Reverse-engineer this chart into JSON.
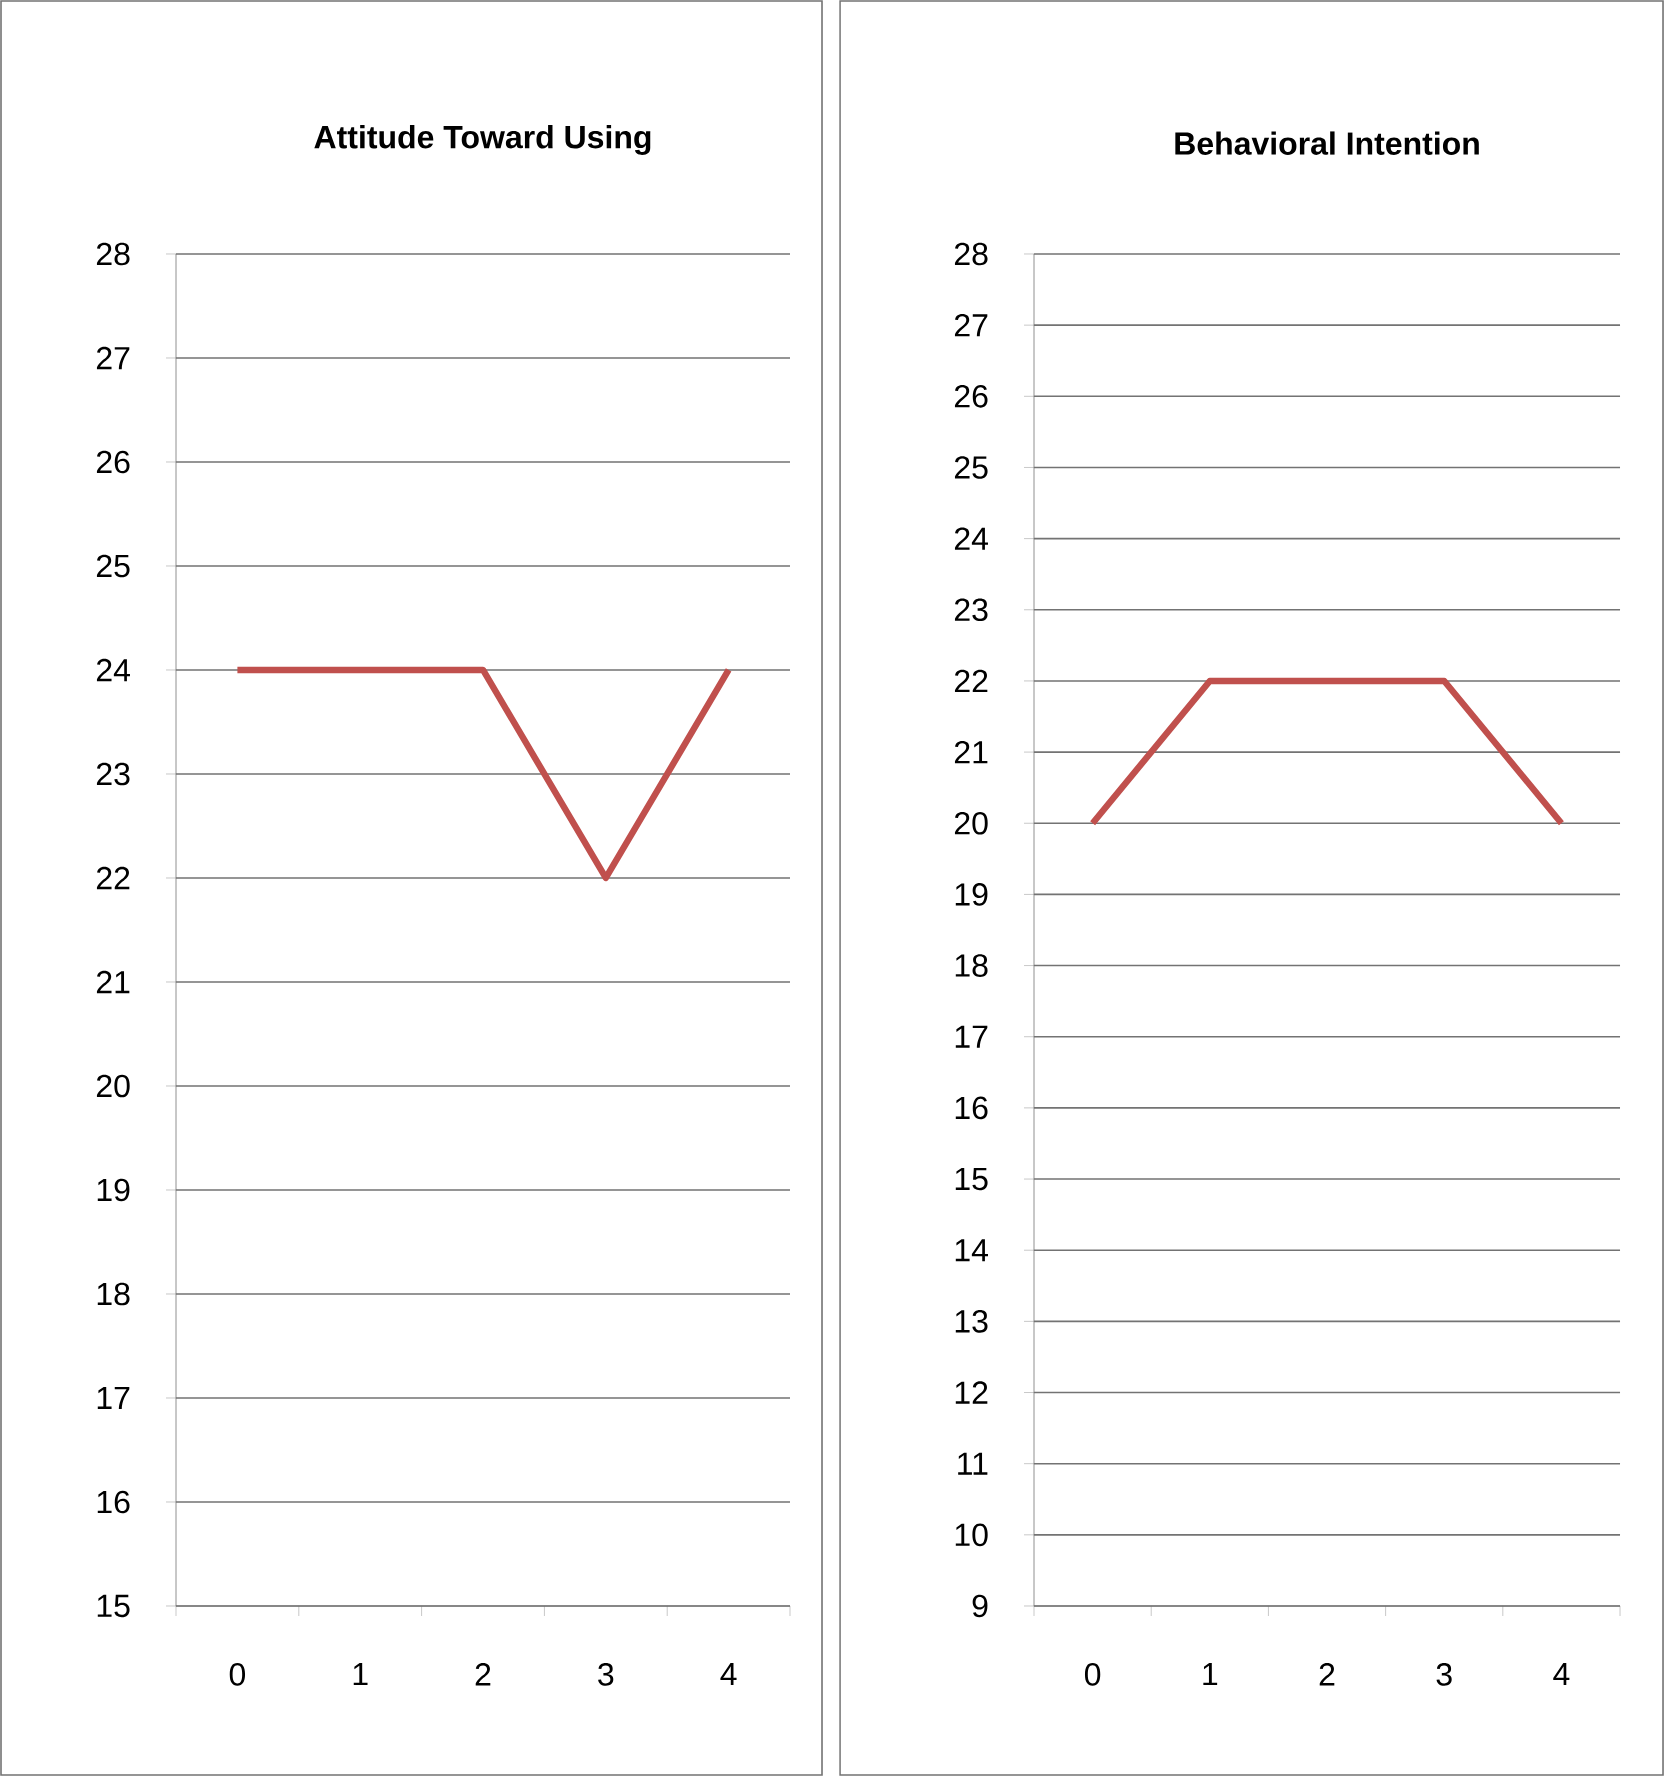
{
  "chart_data": [
    {
      "type": "line",
      "title": "Attitude Toward Using",
      "categories": [
        "0",
        "1",
        "2",
        "3",
        "4"
      ],
      "series": [
        {
          "color": "#c0504d",
          "values": [
            24,
            24,
            24,
            22,
            24
          ]
        }
      ],
      "ylim": [
        15,
        28
      ],
      "yticks": [
        15,
        16,
        17,
        18,
        19,
        20,
        21,
        22,
        23,
        24,
        25,
        26,
        27,
        28
      ],
      "grid": "y",
      "marker": "none",
      "line_style": "solid"
    },
    {
      "type": "line",
      "title": "Behavioral Intention",
      "categories": [
        "0",
        "1",
        "2",
        "3",
        "4"
      ],
      "series": [
        {
          "color": "#c0504d",
          "values": [
            20,
            22,
            22,
            22,
            20
          ]
        }
      ],
      "ylim": [
        9,
        28
      ],
      "yticks": [
        9,
        10,
        11,
        12,
        13,
        14,
        15,
        16,
        17,
        18,
        19,
        20,
        21,
        22,
        23,
        24,
        25,
        26,
        27,
        28
      ],
      "grid": "y",
      "marker": "none",
      "line_style": "solid"
    }
  ]
}
